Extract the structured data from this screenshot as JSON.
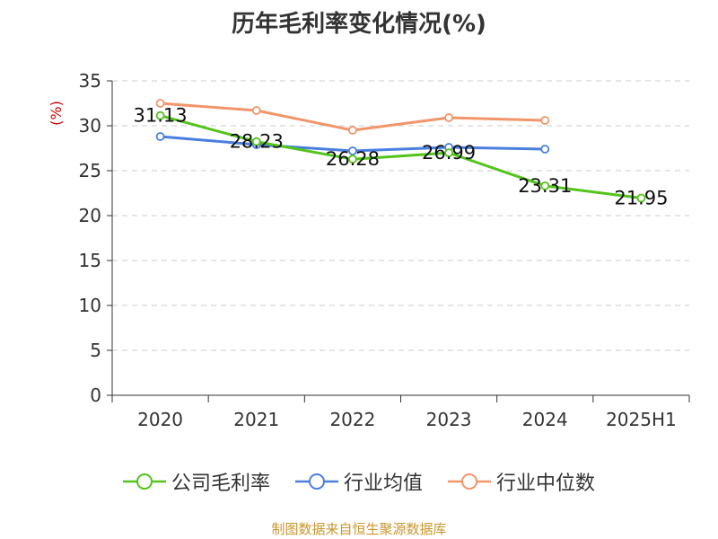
{
  "title": "历年毛利率变化情况(%)",
  "footer": "制图数据来自恒生聚源数据库",
  "chart_data": {
    "type": "line",
    "title": "历年毛利率变化情况(%)",
    "ylabel": "(%)",
    "xlabel": "",
    "categories": [
      "2020",
      "2021",
      "2022",
      "2023",
      "2024",
      "2025H1"
    ],
    "ylim": [
      0,
      35
    ],
    "yticks": [
      0,
      5,
      10,
      15,
      20,
      25,
      30,
      35
    ],
    "grid": true,
    "legend_position": "bottom",
    "series": [
      {
        "name": "公司毛利率",
        "color": "#52c41a",
        "values": [
          31.13,
          28.23,
          26.28,
          26.99,
          23.31,
          21.95
        ],
        "labels": [
          "31.13",
          "28.23",
          "26.28",
          "26.99",
          "23.31",
          "21.95"
        ]
      },
      {
        "name": "行业均值",
        "color": "#4a7fe0",
        "values": [
          28.8,
          27.9,
          27.2,
          27.6,
          27.4,
          null
        ]
      },
      {
        "name": "行业中位数",
        "color": "#f2956a",
        "values": [
          32.5,
          31.7,
          29.5,
          30.9,
          30.6,
          null
        ]
      }
    ]
  }
}
